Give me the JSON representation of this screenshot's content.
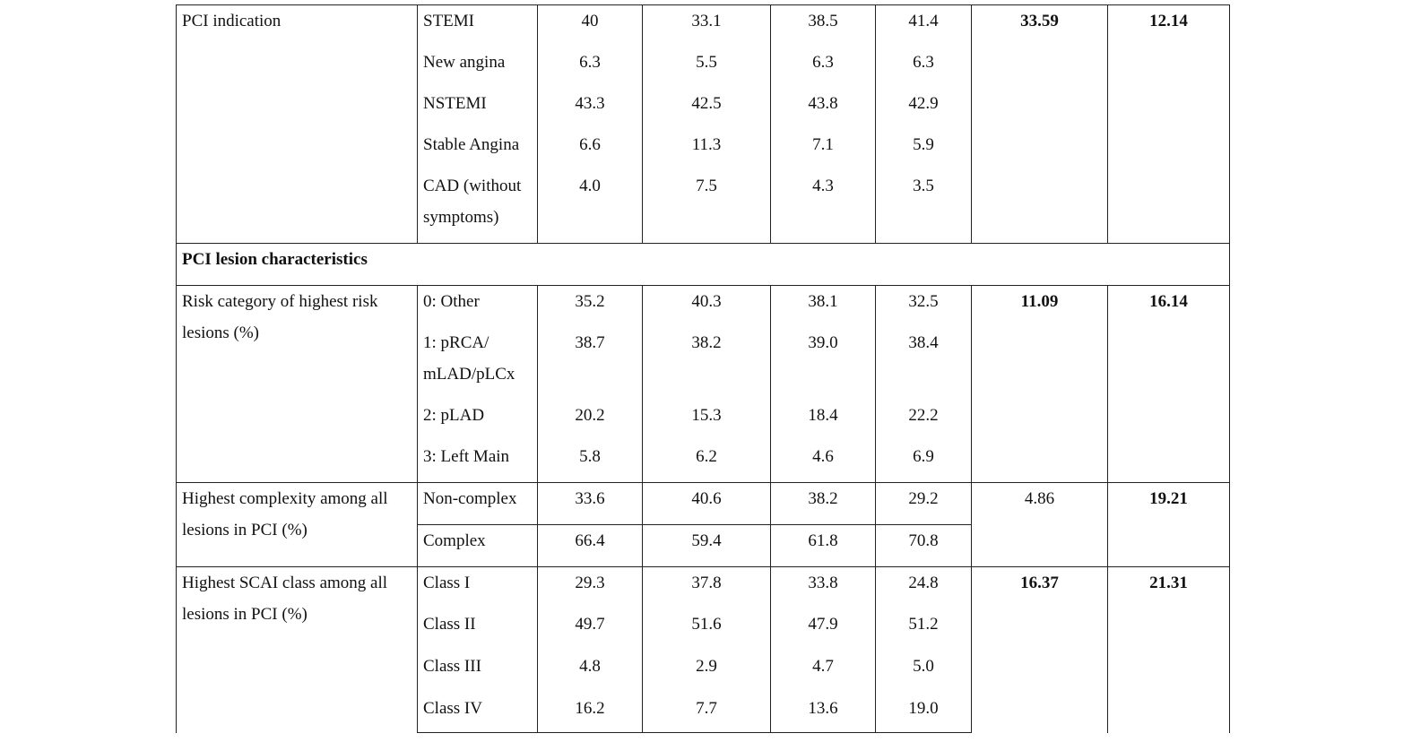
{
  "table": {
    "pci_indication": {
      "label": "PCI indication",
      "rows": [
        {
          "cat": "STEMI",
          "v": [
            "40",
            "33.1",
            "38.5",
            "41.4"
          ]
        },
        {
          "cat": "New angina",
          "v": [
            "6.3",
            "5.5",
            "6.3",
            "6.3"
          ]
        },
        {
          "cat": "NSTEMI",
          "v": [
            "43.3",
            "42.5",
            "43.8",
            "42.9"
          ]
        },
        {
          "cat": "Stable Angina",
          "v": [
            "6.6",
            "11.3",
            "7.1",
            "5.9"
          ]
        },
        {
          "cat_line1": "CAD (without",
          "cat_line2": "symptoms)",
          "v": [
            "4.0",
            "7.5",
            "4.3",
            "3.5"
          ]
        }
      ],
      "stat1": "33.59",
      "stat2": "12.14"
    },
    "section": {
      "title": "PCI lesion characteristics"
    },
    "risk_category": {
      "label_line1": "Risk category of highest risk",
      "label_line2": "lesions (%)",
      "rows": [
        {
          "cat": "0: Other",
          "v": [
            "35.2",
            "40.3",
            "38.1",
            "32.5"
          ]
        },
        {
          "cat_line1": "1: pRCA/",
          "cat_line2": "mLAD/pLCx",
          "v": [
            "38.7",
            "38.2",
            "39.0",
            "38.4"
          ]
        },
        {
          "cat": "2: pLAD",
          "v": [
            "20.2",
            "15.3",
            "18.4",
            "22.2"
          ]
        },
        {
          "cat": "3: Left Main",
          "v": [
            "5.8",
            "6.2",
            "4.6",
            "6.9"
          ]
        }
      ],
      "stat1": "11.09",
      "stat2": "16.14"
    },
    "complexity": {
      "label_line1": "Highest complexity among all",
      "label_line2": "lesions in PCI (%)",
      "rows": [
        {
          "cat": "Non-complex",
          "v": [
            "33.6",
            "40.6",
            "38.2",
            "29.2"
          ]
        },
        {
          "cat": "Complex",
          "v": [
            "66.4",
            "59.4",
            "61.8",
            "70.8"
          ]
        }
      ],
      "stat1": "4.86",
      "stat2": "19.21"
    },
    "scai": {
      "label_line1": "Highest SCAI class among all",
      "label_line2": "lesions in PCI (%)",
      "rows": [
        {
          "cat": "Class I",
          "v": [
            "29.3",
            "37.8",
            "33.8",
            "24.8"
          ]
        },
        {
          "cat": "Class II",
          "v": [
            "49.7",
            "51.6",
            "47.9",
            "51.2"
          ]
        },
        {
          "cat": "Class III",
          "v": [
            "4.8",
            "2.9",
            "4.7",
            "5.0"
          ]
        },
        {
          "cat": "Class IV",
          "v": [
            "16.2",
            "7.7",
            "13.6",
            "19.0"
          ]
        }
      ],
      "stat1": "16.37",
      "stat2": "21.31"
    }
  }
}
